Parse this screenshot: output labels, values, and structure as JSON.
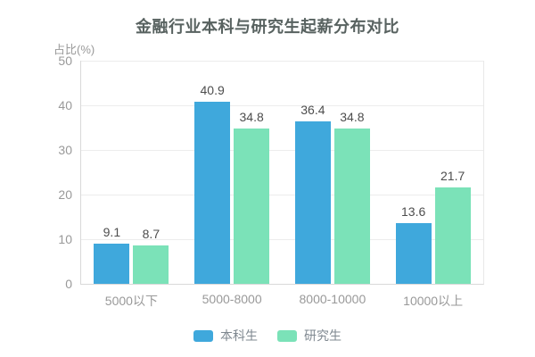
{
  "title": "金融行业本科与研究生起薪分布对比",
  "y_axis_name": "占比(%)",
  "colors": {
    "background": "#FFFFFF",
    "title": "#586260",
    "axis_label": "#999999",
    "value_label": "#4D4D4D",
    "legend_text": "#7F8890",
    "grid_line": "#ECECEC",
    "axis_line": "#D9D9D9",
    "plot_right_border": "#E8E8E8",
    "series_bachelor": "#3FA8DC",
    "series_graduate": "#7BE2B8"
  },
  "chart_data": {
    "type": "bar",
    "title": "金融行业本科与研究生起薪分布对比",
    "categories": [
      "5000以下",
      "5000-8000",
      "8000-10000",
      "10000以上"
    ],
    "series": [
      {
        "name": "本科生",
        "key": "bachelor",
        "color": "#3FA8DC",
        "values": [
          9.1,
          40.9,
          36.4,
          13.6
        ]
      },
      {
        "name": "研究生",
        "key": "graduate",
        "color": "#7BE2B8",
        "values": [
          8.7,
          34.8,
          34.8,
          21.7
        ]
      }
    ],
    "xlabel": "",
    "ylabel": "占比(%)",
    "ylim": [
      0,
      50
    ],
    "y_ticks": [
      0,
      10,
      20,
      30,
      40,
      50
    ],
    "grid": true,
    "value_labels_shown": true,
    "legend_position": "bottom",
    "legend_items": [
      "本科生",
      "研究生"
    ]
  }
}
